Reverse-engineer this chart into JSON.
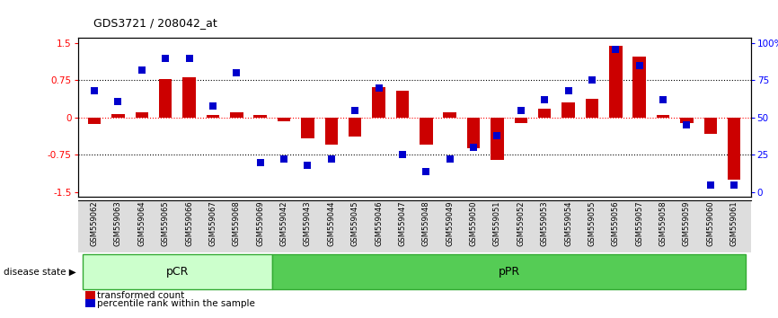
{
  "title": "GDS3721 / 208042_at",
  "samples": [
    "GSM559062",
    "GSM559063",
    "GSM559064",
    "GSM559065",
    "GSM559066",
    "GSM559067",
    "GSM559068",
    "GSM559069",
    "GSM559042",
    "GSM559043",
    "GSM559044",
    "GSM559045",
    "GSM559046",
    "GSM559047",
    "GSM559048",
    "GSM559049",
    "GSM559050",
    "GSM559051",
    "GSM559052",
    "GSM559053",
    "GSM559054",
    "GSM559055",
    "GSM559056",
    "GSM559057",
    "GSM559058",
    "GSM559059",
    "GSM559060",
    "GSM559061"
  ],
  "transformed_count": [
    -0.12,
    0.08,
    0.1,
    0.78,
    0.82,
    0.06,
    0.1,
    0.06,
    -0.08,
    -0.42,
    -0.55,
    -0.38,
    0.62,
    0.55,
    -0.55,
    0.1,
    -0.62,
    -0.85,
    -0.1,
    0.18,
    0.3,
    0.38,
    1.45,
    1.22,
    0.06,
    -0.1,
    -0.32,
    -1.25
  ],
  "percentile_rank": [
    68,
    61,
    82,
    90,
    90,
    58,
    80,
    20,
    22,
    18,
    22,
    55,
    70,
    25,
    14,
    22,
    30,
    38,
    55,
    62,
    68,
    75,
    96,
    85,
    62,
    45,
    5,
    5
  ],
  "groups": [
    {
      "label": "pCR",
      "start": 0,
      "end": 8,
      "color": "#ccffcc"
    },
    {
      "label": "pPR",
      "start": 8,
      "end": 28,
      "color": "#55cc55"
    }
  ],
  "bar_color": "#cc0000",
  "dot_color": "#0000cc",
  "ylim": [
    -1.6,
    1.6
  ],
  "yticks_left": [
    -1.5,
    -0.75,
    0.0,
    0.75,
    1.5
  ],
  "yticks_left_labels": [
    "-1.5",
    "-0.75",
    "0",
    "0.75",
    "1.5"
  ],
  "hline_black": [
    0.75,
    -0.75
  ],
  "hline_red": [
    0.0
  ],
  "right_ytick_pct": [
    0,
    25,
    50,
    75,
    100
  ],
  "right_ylabels": [
    "0",
    "25",
    "50",
    "75",
    "100%"
  ],
  "legend_items": [
    {
      "color": "#cc0000",
      "label": "transformed count"
    },
    {
      "color": "#0000cc",
      "label": "percentile rank within the sample"
    }
  ],
  "disease_state_label": "disease state",
  "background_color": "#ffffff",
  "pCR_count": 8,
  "n_total": 28
}
